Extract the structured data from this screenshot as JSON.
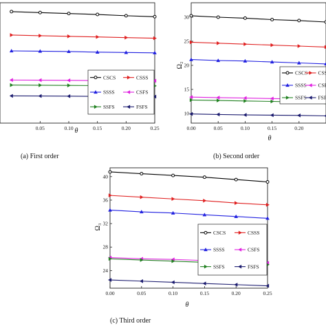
{
  "chart_data": [
    {
      "type": "line",
      "panel": "a",
      "caption": "(a) First order",
      "xlabel": "θ",
      "ylabel": "",
      "xlim": [
        -0.02,
        0.25
      ],
      "ylim": [
        3,
        22
      ],
      "xticks": [
        "0.05",
        "0.10",
        "0.15",
        "0.20",
        "0.25"
      ],
      "xtick_values": [
        0.05,
        0.1,
        0.15,
        0.2,
        0.25
      ],
      "yticks": [],
      "x": [
        0,
        0.05,
        0.1,
        0.15,
        0.2,
        0.25
      ],
      "series": [
        {
          "name": "CSCS",
          "color": "#000000",
          "marker": "circle",
          "values": [
            20.6,
            20.45,
            20.3,
            20.15,
            19.95,
            19.8
          ]
        },
        {
          "name": "CSSS",
          "color": "#e02020",
          "marker": "right-triangle",
          "values": [
            16.9,
            16.8,
            16.7,
            16.6,
            16.5,
            16.4
          ]
        },
        {
          "name": "SSSS",
          "color": "#2020e0",
          "marker": "up-triangle",
          "values": [
            14.4,
            14.35,
            14.3,
            14.2,
            14.15,
            14.1
          ]
        },
        {
          "name": "CSFS",
          "color": "#e020e0",
          "marker": "left-triangle",
          "values": [
            9.8,
            9.78,
            9.75,
            9.72,
            9.7,
            9.68
          ]
        },
        {
          "name": "SSFS",
          "color": "#208020",
          "marker": "right-triangle",
          "values": [
            9.0,
            8.98,
            8.95,
            8.92,
            8.9,
            8.88
          ]
        },
        {
          "name": "FSFS",
          "color": "#1a1a6e",
          "marker": "left-triangle",
          "values": [
            7.3,
            7.28,
            7.25,
            7.22,
            7.2,
            7.18
          ]
        }
      ]
    },
    {
      "type": "line",
      "panel": "b",
      "caption": "(b) Second order",
      "xlabel": "θ",
      "ylabel": "Ω₂",
      "xlim": [
        0,
        0.25
      ],
      "ylim": [
        8,
        33
      ],
      "xticks": [
        "0.00",
        "0.05",
        "0.10",
        "0.15",
        "0.20"
      ],
      "xtick_values": [
        0,
        0.05,
        0.1,
        0.15,
        0.2
      ],
      "yticks": [
        "10",
        "15",
        "20",
        "25",
        "30"
      ],
      "ytick_values": [
        10,
        15,
        20,
        25,
        30
      ],
      "x": [
        0,
        0.05,
        0.1,
        0.15,
        0.2,
        0.25
      ],
      "series": [
        {
          "name": "CSCS",
          "color": "#000000",
          "marker": "circle",
          "values": [
            30.3,
            30.0,
            29.8,
            29.5,
            29.3,
            29.0
          ]
        },
        {
          "name": "CSSS",
          "color": "#e02020",
          "marker": "right-triangle",
          "values": [
            24.8,
            24.6,
            24.4,
            24.2,
            24.0,
            23.8
          ]
        },
        {
          "name": "SSSS",
          "color": "#2020e0",
          "marker": "up-triangle",
          "values": [
            21.2,
            21.0,
            20.9,
            20.7,
            20.5,
            20.3
          ]
        },
        {
          "name": "CSFS",
          "color": "#e020e0",
          "marker": "left-triangle",
          "values": [
            13.4,
            13.3,
            13.2,
            13.1,
            13.0,
            12.9
          ]
        },
        {
          "name": "SSFS",
          "color": "#208020",
          "marker": "right-triangle",
          "values": [
            12.8,
            12.7,
            12.6,
            12.5,
            12.4,
            12.3
          ]
        },
        {
          "name": "FSFS",
          "color": "#1a1a6e",
          "marker": "left-triangle",
          "values": [
            9.9,
            9.8,
            9.7,
            9.65,
            9.6,
            9.5
          ]
        }
      ]
    },
    {
      "type": "line",
      "panel": "c",
      "caption": "(c) Third order",
      "xlabel": "θ",
      "ylabel": "Ω₃",
      "xlim": [
        0,
        0.25
      ],
      "ylim": [
        21,
        41.5
      ],
      "xticks": [
        "0.00",
        "0.05",
        "0.10",
        "0.15",
        "0.20",
        "0.25"
      ],
      "xtick_values": [
        0,
        0.05,
        0.1,
        0.15,
        0.2,
        0.25
      ],
      "yticks": [
        "24",
        "28",
        "32",
        "36",
        "40"
      ],
      "ytick_values": [
        24,
        28,
        32,
        36,
        40
      ],
      "x": [
        0,
        0.05,
        0.1,
        0.15,
        0.2,
        0.25
      ],
      "series": [
        {
          "name": "CSCS",
          "color": "#000000",
          "marker": "circle",
          "values": [
            40.8,
            40.5,
            40.2,
            39.9,
            39.5,
            39.1
          ]
        },
        {
          "name": "CSSS",
          "color": "#e02020",
          "marker": "right-triangle",
          "values": [
            36.8,
            36.5,
            36.2,
            35.9,
            35.5,
            35.2
          ]
        },
        {
          "name": "SSSS",
          "color": "#2020e0",
          "marker": "up-triangle",
          "values": [
            34.3,
            34.0,
            33.8,
            33.5,
            33.2,
            32.9
          ]
        },
        {
          "name": "CSFS",
          "color": "#e020e0",
          "marker": "left-triangle",
          "values": [
            26.2,
            26.0,
            25.9,
            25.7,
            25.5,
            25.3
          ]
        },
        {
          "name": "SSFS",
          "color": "#208020",
          "marker": "right-triangle",
          "values": [
            26.0,
            25.8,
            25.6,
            25.4,
            25.2,
            25.0
          ]
        },
        {
          "name": "FSFS",
          "color": "#1a1a6e",
          "marker": "left-triangle",
          "values": [
            22.4,
            22.2,
            22.0,
            21.8,
            21.6,
            21.4
          ]
        }
      ]
    }
  ]
}
